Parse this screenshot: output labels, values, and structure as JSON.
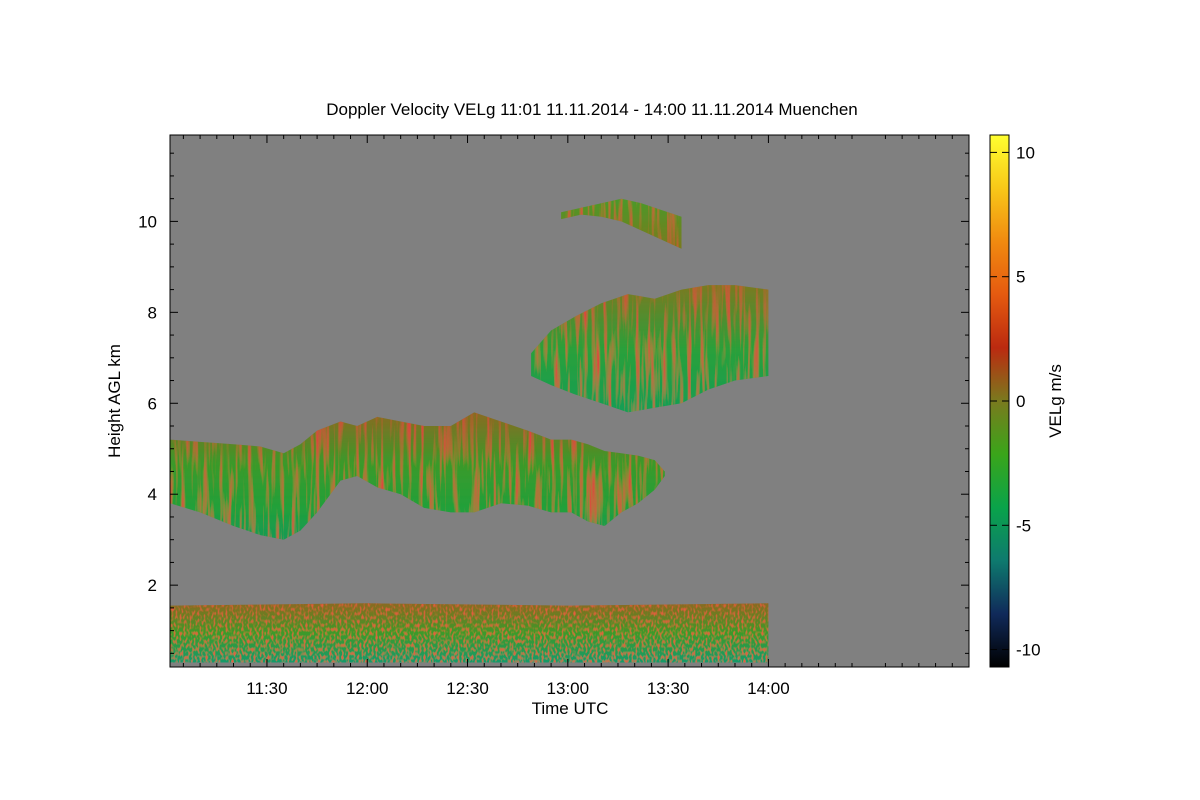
{
  "chart_data": {
    "type": "heatmap",
    "title": "Doppler Velocity VELg   11:01 11.11.2014 - 14:00 11.11.2014 Muenchen",
    "xlabel": "Time UTC",
    "ylabel": "Height AGL km",
    "x_unit": "minutes since 11:00",
    "xlim": [
      1,
      240
    ],
    "ylim": [
      0.2,
      11.9
    ],
    "x_ticks": [
      {
        "value": 30,
        "label": "11:30"
      },
      {
        "value": 60,
        "label": "12:00"
      },
      {
        "value": 90,
        "label": "12:30"
      },
      {
        "value": 120,
        "label": "13:00"
      },
      {
        "value": 150,
        "label": "13:30"
      },
      {
        "value": 180,
        "label": "14:00"
      }
    ],
    "y_ticks": [
      {
        "value": 2,
        "label": "2"
      },
      {
        "value": 4,
        "label": "4"
      },
      {
        "value": 6,
        "label": "6"
      },
      {
        "value": 8,
        "label": "8"
      },
      {
        "value": 10,
        "label": "10"
      }
    ],
    "colorbar": {
      "label": "VELg m/s",
      "range": [
        -10.7,
        10.7
      ],
      "ticks": [
        {
          "value": 10,
          "label": "10"
        },
        {
          "value": 5,
          "label": "5"
        },
        {
          "value": 0,
          "label": "0"
        },
        {
          "value": -5,
          "label": "-5"
        },
        {
          "value": -10,
          "label": "-10"
        }
      ],
      "colors": [
        "#000000",
        "#102a5a",
        "#0e7a6e",
        "#0aa34a",
        "#3aa51a",
        "#7a7a1e",
        "#bb2a10",
        "#e55a10",
        "#f08a10",
        "#f8c818",
        "#ffff30"
      ]
    },
    "background_color": "#808080",
    "layers": [
      {
        "name": "lower",
        "x": [
          1,
          10,
          20,
          28,
          35,
          40,
          45,
          52,
          57,
          63,
          70,
          77,
          85,
          92,
          100,
          108,
          115,
          121,
          126,
          131,
          136,
          141,
          146,
          149
        ],
        "top": [
          5.2,
          5.15,
          5.1,
          5.05,
          4.9,
          5.1,
          5.4,
          5.6,
          5.5,
          5.7,
          5.6,
          5.5,
          5.5,
          5.8,
          5.6,
          5.4,
          5.2,
          5.2,
          5.1,
          4.95,
          4.9,
          4.85,
          4.75,
          4.5
        ],
        "bottom": [
          3.8,
          3.6,
          3.3,
          3.1,
          3.0,
          3.2,
          3.6,
          4.3,
          4.4,
          4.15,
          4.0,
          3.7,
          3.6,
          3.6,
          3.8,
          3.75,
          3.6,
          3.6,
          3.4,
          3.3,
          3.6,
          3.8,
          4.1,
          4.4
        ]
      },
      {
        "name": "upper",
        "x": [
          109,
          115,
          122,
          130,
          138,
          146,
          154,
          162,
          170,
          180
        ],
        "top": [
          7.1,
          7.6,
          7.9,
          8.2,
          8.4,
          8.3,
          8.5,
          8.6,
          8.6,
          8.5
        ],
        "bottom": [
          6.6,
          6.4,
          6.2,
          6.0,
          5.8,
          5.9,
          6.0,
          6.3,
          6.5,
          6.6
        ]
      },
      {
        "name": "cirrus",
        "x": [
          118,
          124,
          130,
          136,
          142,
          148,
          154
        ],
        "top": [
          10.2,
          10.3,
          10.4,
          10.5,
          10.4,
          10.25,
          10.1
        ],
        "bottom": [
          10.05,
          10.15,
          10.1,
          10.0,
          9.8,
          9.6,
          9.4
        ]
      },
      {
        "name": "boundary",
        "x": [
          1,
          60,
          120,
          180
        ],
        "top": [
          1.55,
          1.6,
          1.55,
          1.6
        ],
        "bottom": [
          0.3,
          0.3,
          0.3,
          0.3
        ]
      }
    ]
  }
}
